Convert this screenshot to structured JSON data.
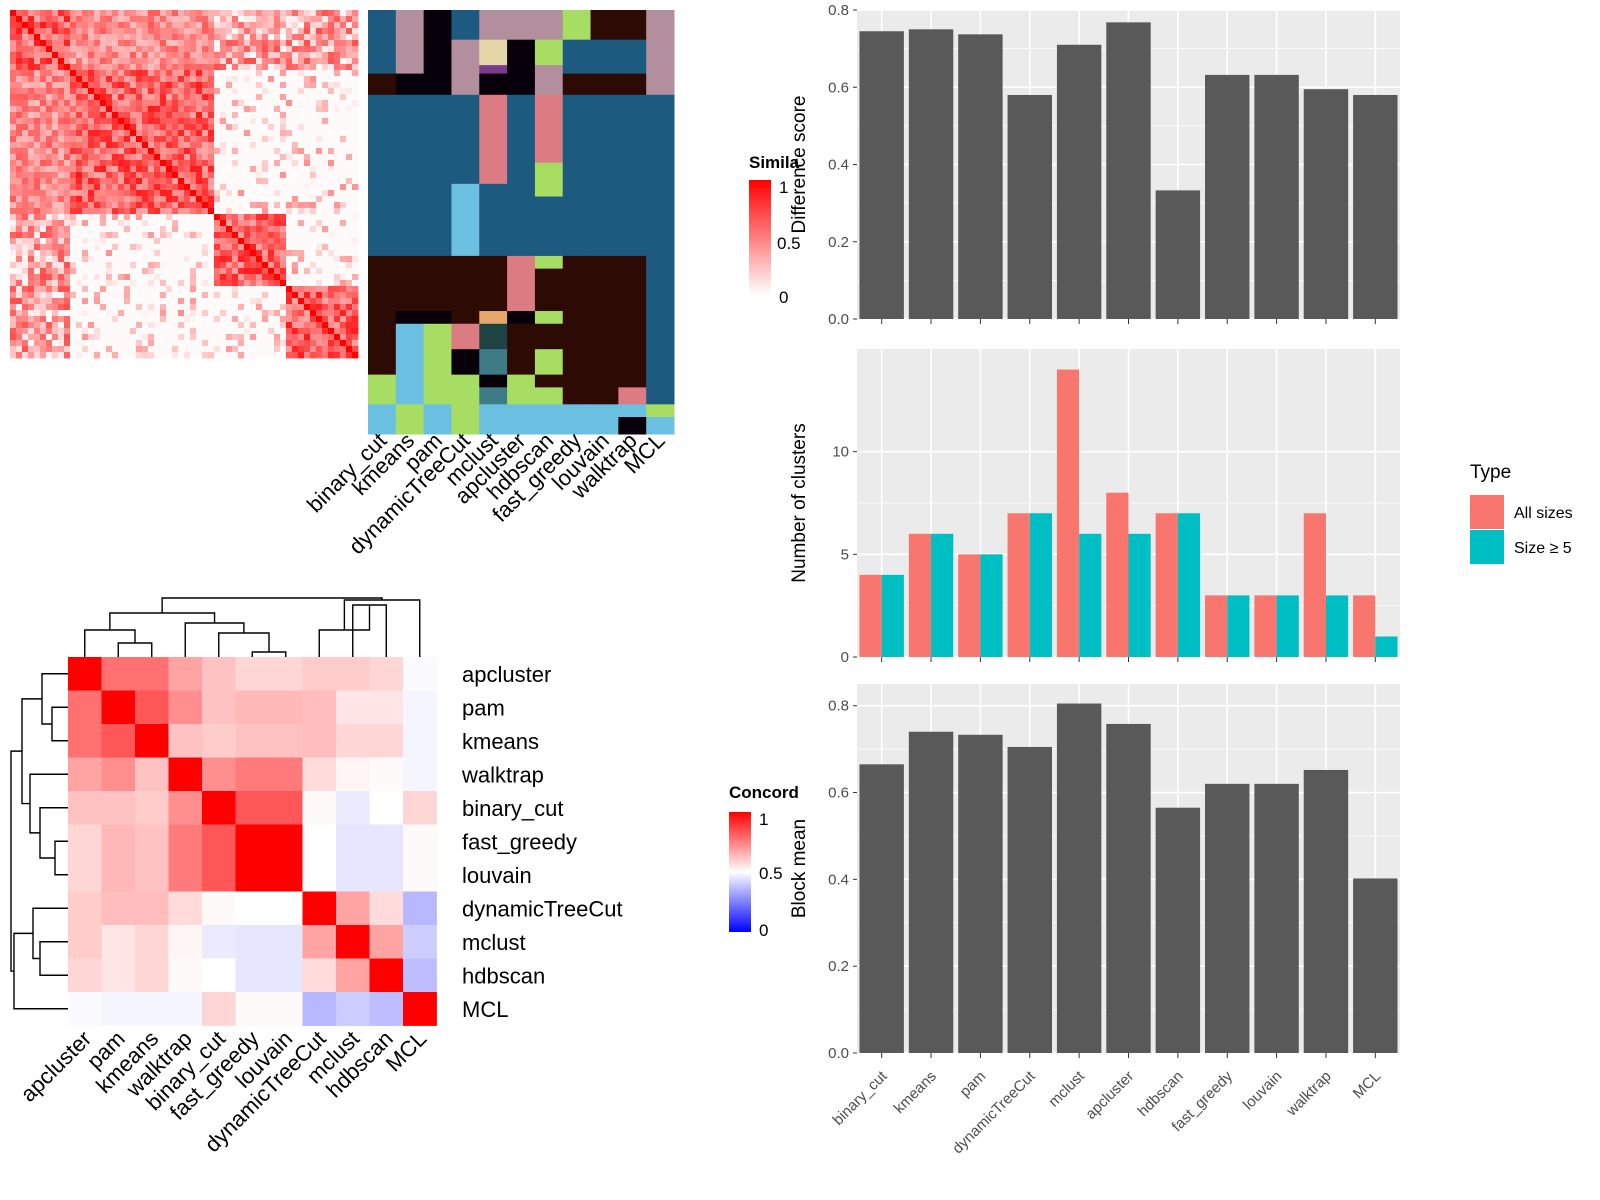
{
  "methods_heatmap_order": [
    "binary_cut",
    "kmeans",
    "pam",
    "dynamicTreeCut",
    "mclust",
    "apcluster",
    "hdbscan",
    "fast_greedy",
    "louvain",
    "walktrap",
    "MCL"
  ],
  "similarity_legend": {
    "title": "Simila",
    "ticks": [
      "1",
      "0.5",
      "0"
    ]
  },
  "concordance_heatmap": {
    "order": [
      "apcluster",
      "pam",
      "kmeans",
      "walktrap",
      "binary_cut",
      "fast_greedy",
      "louvain",
      "dynamicTreeCut",
      "mclust",
      "hdbscan",
      "MCL"
    ],
    "values": [
      [
        1.0,
        0.78,
        0.78,
        0.68,
        0.62,
        0.58,
        0.58,
        0.6,
        0.6,
        0.58,
        0.49
      ],
      [
        0.78,
        1.0,
        0.83,
        0.72,
        0.62,
        0.64,
        0.64,
        0.63,
        0.55,
        0.55,
        0.48
      ],
      [
        0.78,
        0.83,
        1.0,
        0.62,
        0.6,
        0.62,
        0.62,
        0.63,
        0.58,
        0.58,
        0.48
      ],
      [
        0.68,
        0.72,
        0.62,
        1.0,
        0.72,
        0.76,
        0.76,
        0.57,
        0.52,
        0.51,
        0.48
      ],
      [
        0.62,
        0.62,
        0.6,
        0.72,
        1.0,
        0.83,
        0.83,
        0.51,
        0.46,
        0.5,
        0.58
      ],
      [
        0.58,
        0.64,
        0.62,
        0.76,
        0.83,
        1.0,
        1.0,
        0.5,
        0.45,
        0.45,
        0.51
      ],
      [
        0.58,
        0.64,
        0.62,
        0.76,
        0.83,
        1.0,
        1.0,
        0.5,
        0.45,
        0.45,
        0.51
      ],
      [
        0.6,
        0.63,
        0.63,
        0.57,
        0.51,
        0.5,
        0.5,
        1.0,
        0.68,
        0.57,
        0.36
      ],
      [
        0.6,
        0.55,
        0.58,
        0.52,
        0.46,
        0.45,
        0.45,
        0.68,
        1.0,
        0.68,
        0.4
      ],
      [
        0.58,
        0.55,
        0.58,
        0.51,
        0.5,
        0.45,
        0.45,
        0.57,
        0.68,
        1.0,
        0.37
      ],
      [
        0.49,
        0.48,
        0.48,
        0.48,
        0.58,
        0.51,
        0.51,
        0.36,
        0.4,
        0.37,
        1.0
      ]
    ]
  },
  "concordance_legend": {
    "title": "Concord",
    "ticks": [
      "1",
      "0.5",
      "0"
    ]
  },
  "type_legend": {
    "title": "Type",
    "items": [
      "All sizes",
      "Size ≥ 5"
    ]
  },
  "colors": {
    "bar": "#595959",
    "panel_bg": "#ebebeb",
    "grid": "#ffffff",
    "all_sizes": "#f8766d",
    "size5": "#00bfc4",
    "heat_high": "#ff0000",
    "heat_mid": "#ffffff",
    "heat_low": "#0000ff"
  },
  "chart_data": [
    {
      "type": "bar",
      "categories": [
        "binary_cut",
        "kmeans",
        "pam",
        "dynamicTreeCut",
        "mclust",
        "apcluster",
        "hdbscan",
        "fast_greedy",
        "louvain",
        "walktrap",
        "MCL"
      ],
      "values": [
        0.745,
        0.75,
        0.737,
        0.58,
        0.71,
        0.768,
        0.333,
        0.632,
        0.632,
        0.595,
        0.58
      ],
      "xlabel": "",
      "ylabel": "Difference score",
      "ylim": [
        0,
        0.8
      ],
      "yticks": [
        "0.0",
        "0.2",
        "0.4",
        "0.6",
        "0.8"
      ],
      "grid": true
    },
    {
      "type": "bar",
      "categories": [
        "binary_cut",
        "kmeans",
        "pam",
        "dynamicTreeCut",
        "mclust",
        "apcluster",
        "hdbscan",
        "fast_greedy",
        "louvain",
        "walktrap",
        "MCL"
      ],
      "series": [
        {
          "name": "All sizes",
          "values": [
            4,
            6,
            5,
            7,
            14,
            8,
            7,
            3,
            3,
            7,
            3
          ]
        },
        {
          "name": "Size ≥ 5",
          "values": [
            4,
            6,
            5,
            7,
            6,
            6,
            7,
            3,
            3,
            3,
            1
          ]
        }
      ],
      "xlabel": "",
      "ylabel": "Number of clusters",
      "ylim": [
        0,
        15
      ],
      "yticks": [
        "0",
        "5",
        "10"
      ],
      "grid": true,
      "legend": "right"
    },
    {
      "type": "bar",
      "categories": [
        "binary_cut",
        "kmeans",
        "pam",
        "dynamicTreeCut",
        "mclust",
        "apcluster",
        "hdbscan",
        "fast_greedy",
        "louvain",
        "walktrap",
        "MCL"
      ],
      "values": [
        0.665,
        0.74,
        0.733,
        0.705,
        0.805,
        0.758,
        0.565,
        0.62,
        0.62,
        0.652,
        0.402
      ],
      "xlabel": "",
      "ylabel": "Block mean",
      "ylim": [
        0,
        0.85
      ],
      "yticks": [
        "0.0",
        "0.2",
        "0.4",
        "0.6",
        "0.8"
      ],
      "grid": true
    }
  ]
}
